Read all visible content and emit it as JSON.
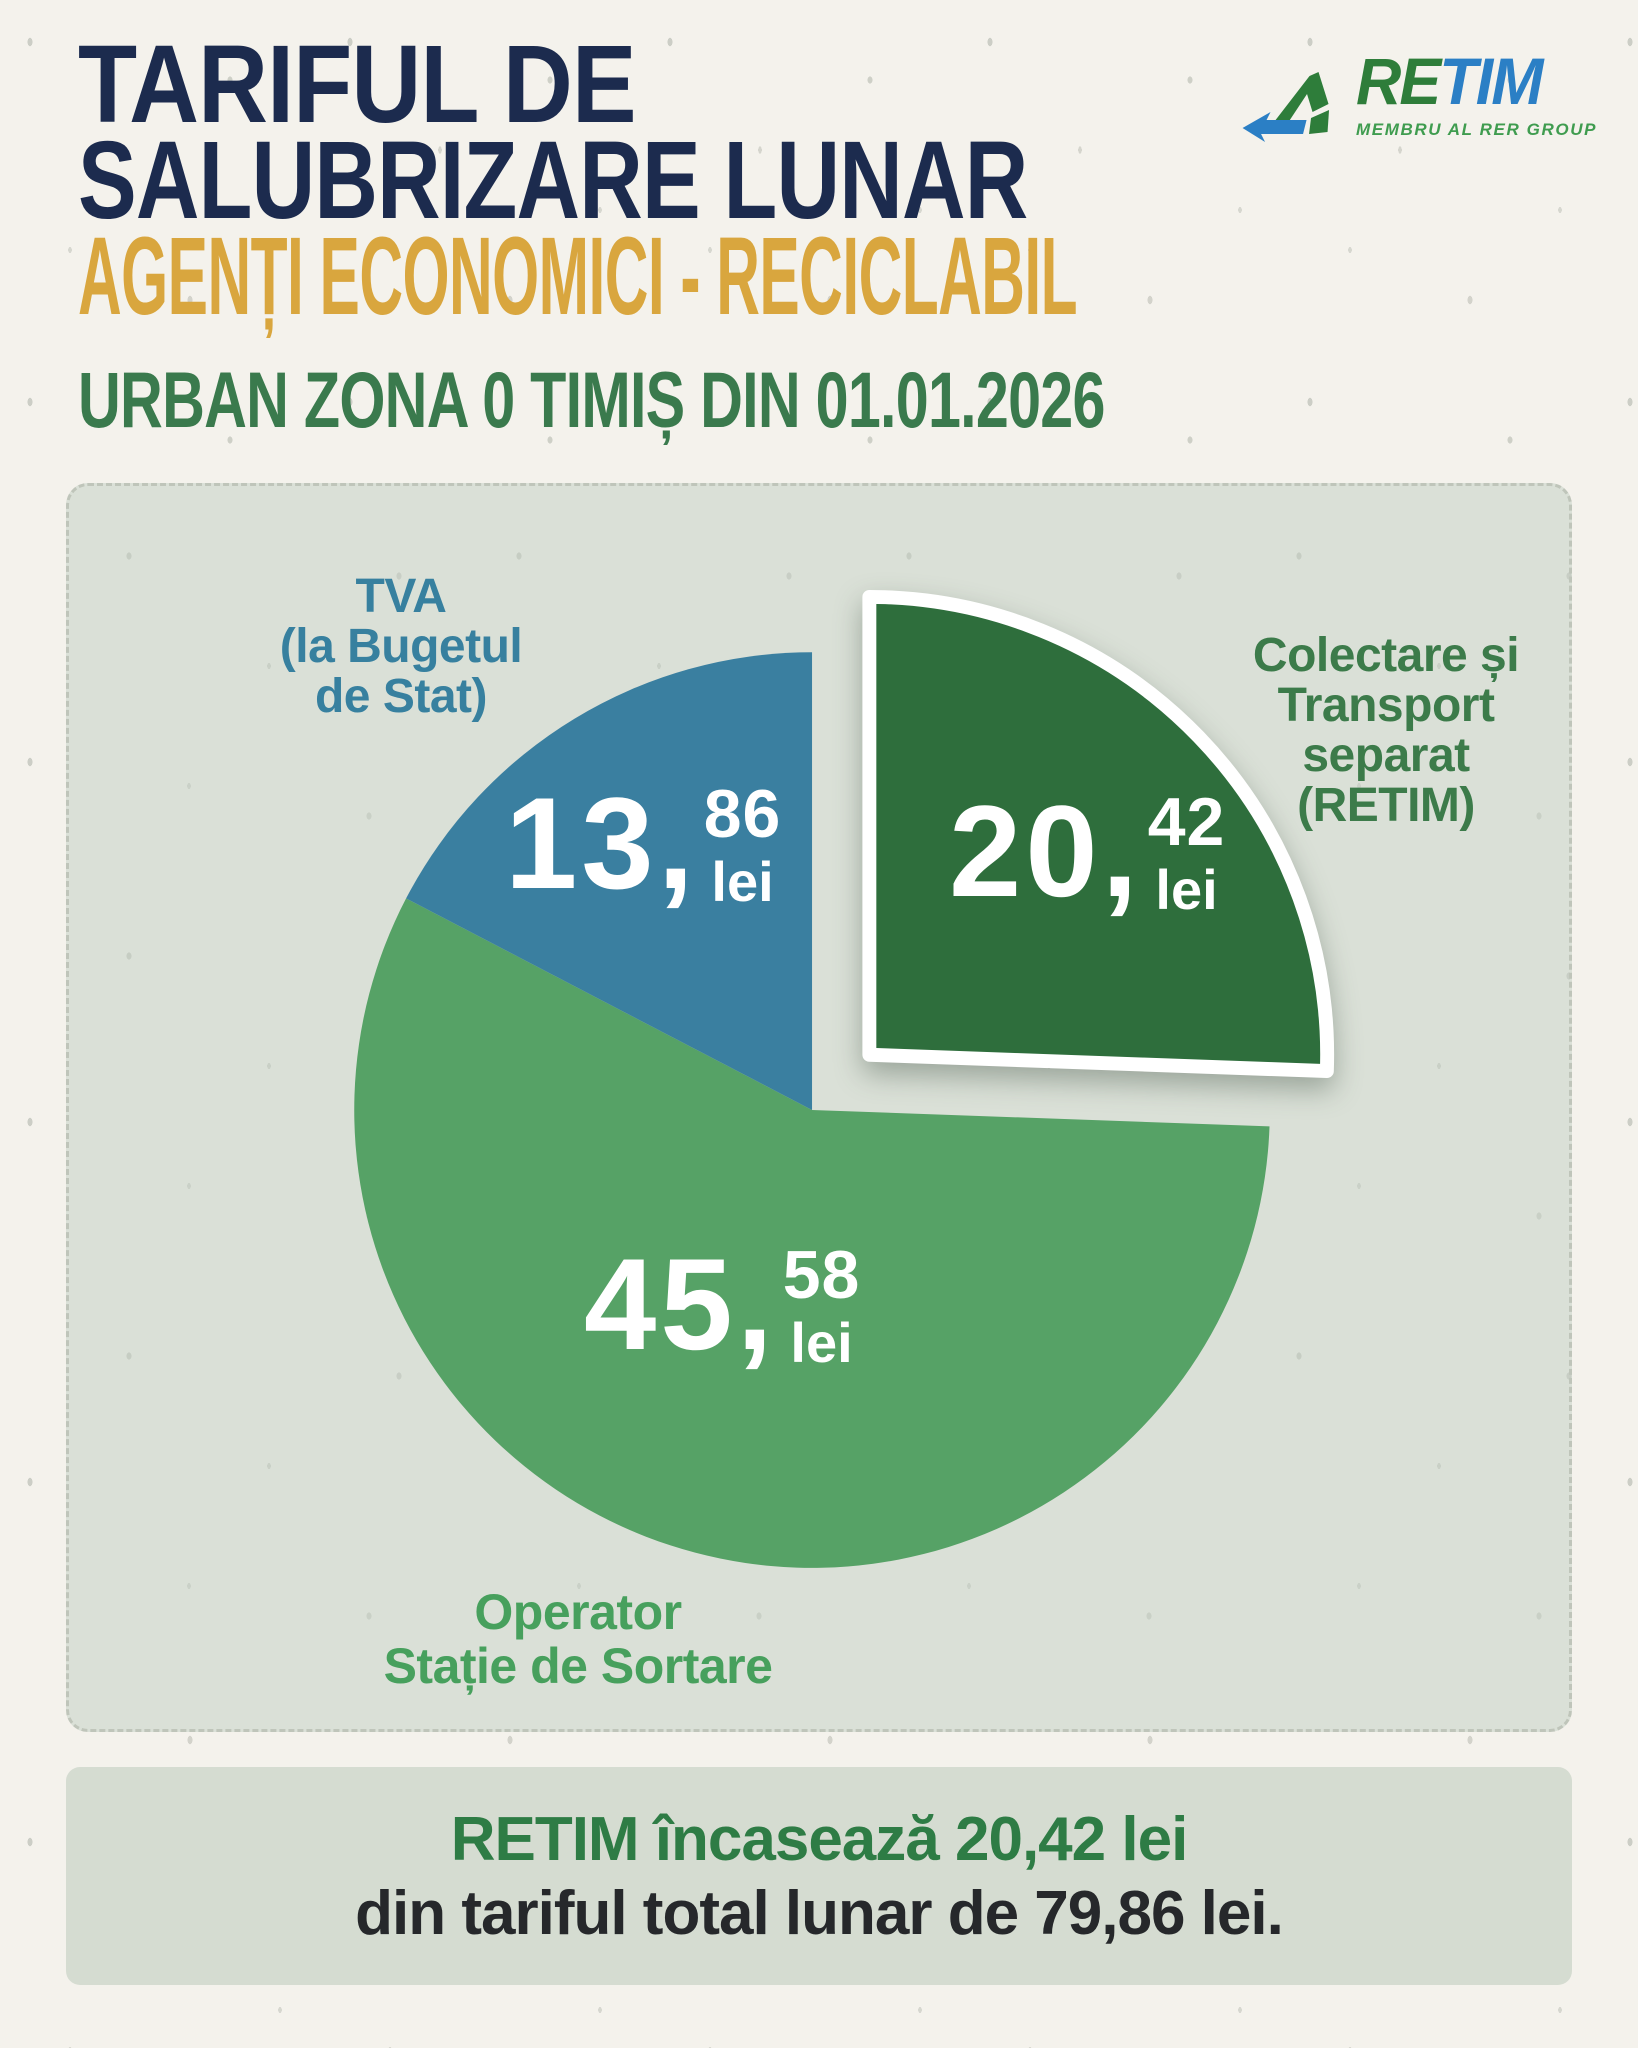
{
  "page": {
    "background": "#F4F2EC",
    "panel_background": "#DAE0D7",
    "banner_background": "#D5DCD1"
  },
  "header": {
    "title_line1": "TARIFUL DE",
    "title_line2": "SALUBRIZARE LUNAR",
    "highlight_line": "AGENȚI ECONOMICI - RECICLABIL",
    "subtitle": "URBAN ZONA 0 TIMIȘ DIN 01.01.2026",
    "title_color": "#1C2B4E",
    "highlight_color": "#D9A63E",
    "subtitle_color": "#3A7A4D"
  },
  "logo": {
    "brand_part1": "RE",
    "brand_part2": "TIM",
    "tagline": "MEMBRU AL RER GROUP",
    "green": "#2E7D3A",
    "blue": "#2B7FC5"
  },
  "chart_data": {
    "type": "pie",
    "title": "Tariful de salubrizare lunar — Agenți economici, reciclabil (urban zona 0 Timiș, din 01.01.2026)",
    "unit": "lei",
    "total": 79.86,
    "start_angle_deg": -90,
    "direction": "clockwise",
    "legend_position": "around",
    "slices": [
      {
        "id": "retim",
        "label": "Colectare și Transport separat (RETIM)",
        "label_lines": [
          "Colectare și",
          "Transport",
          "separat",
          "(RETIM)"
        ],
        "value": 20.42,
        "display": {
          "main": "20,",
          "sup": "42",
          "unit": "lei"
        },
        "color": "#2E6E3C",
        "label_color": "#3C7B4A",
        "exploded": true
      },
      {
        "id": "operator",
        "label": "Operator Stație de Sortare",
        "label_lines": [
          "Operator",
          "Stație de Sortare"
        ],
        "value": 45.58,
        "display": {
          "main": "45,",
          "sup": "58",
          "unit": "lei"
        },
        "color": "#56A266",
        "label_color": "#47A05D",
        "exploded": false
      },
      {
        "id": "tva",
        "label": "TVA (la Bugetul de Stat)",
        "label_lines": [
          "TVA",
          "(la Bugetul",
          "de Stat)"
        ],
        "value": 13.86,
        "display": {
          "main": "13,",
          "sup": "86",
          "unit": "lei"
        },
        "color": "#3A7FA0",
        "label_color": "#37809F",
        "exploded": false
      }
    ]
  },
  "footer": {
    "line1": "RETIM încasează 20,42 lei",
    "line2": "din tariful total lunar de 79,86 lei.",
    "line1_color": "#2E7C45",
    "line2_color": "#26282B"
  }
}
